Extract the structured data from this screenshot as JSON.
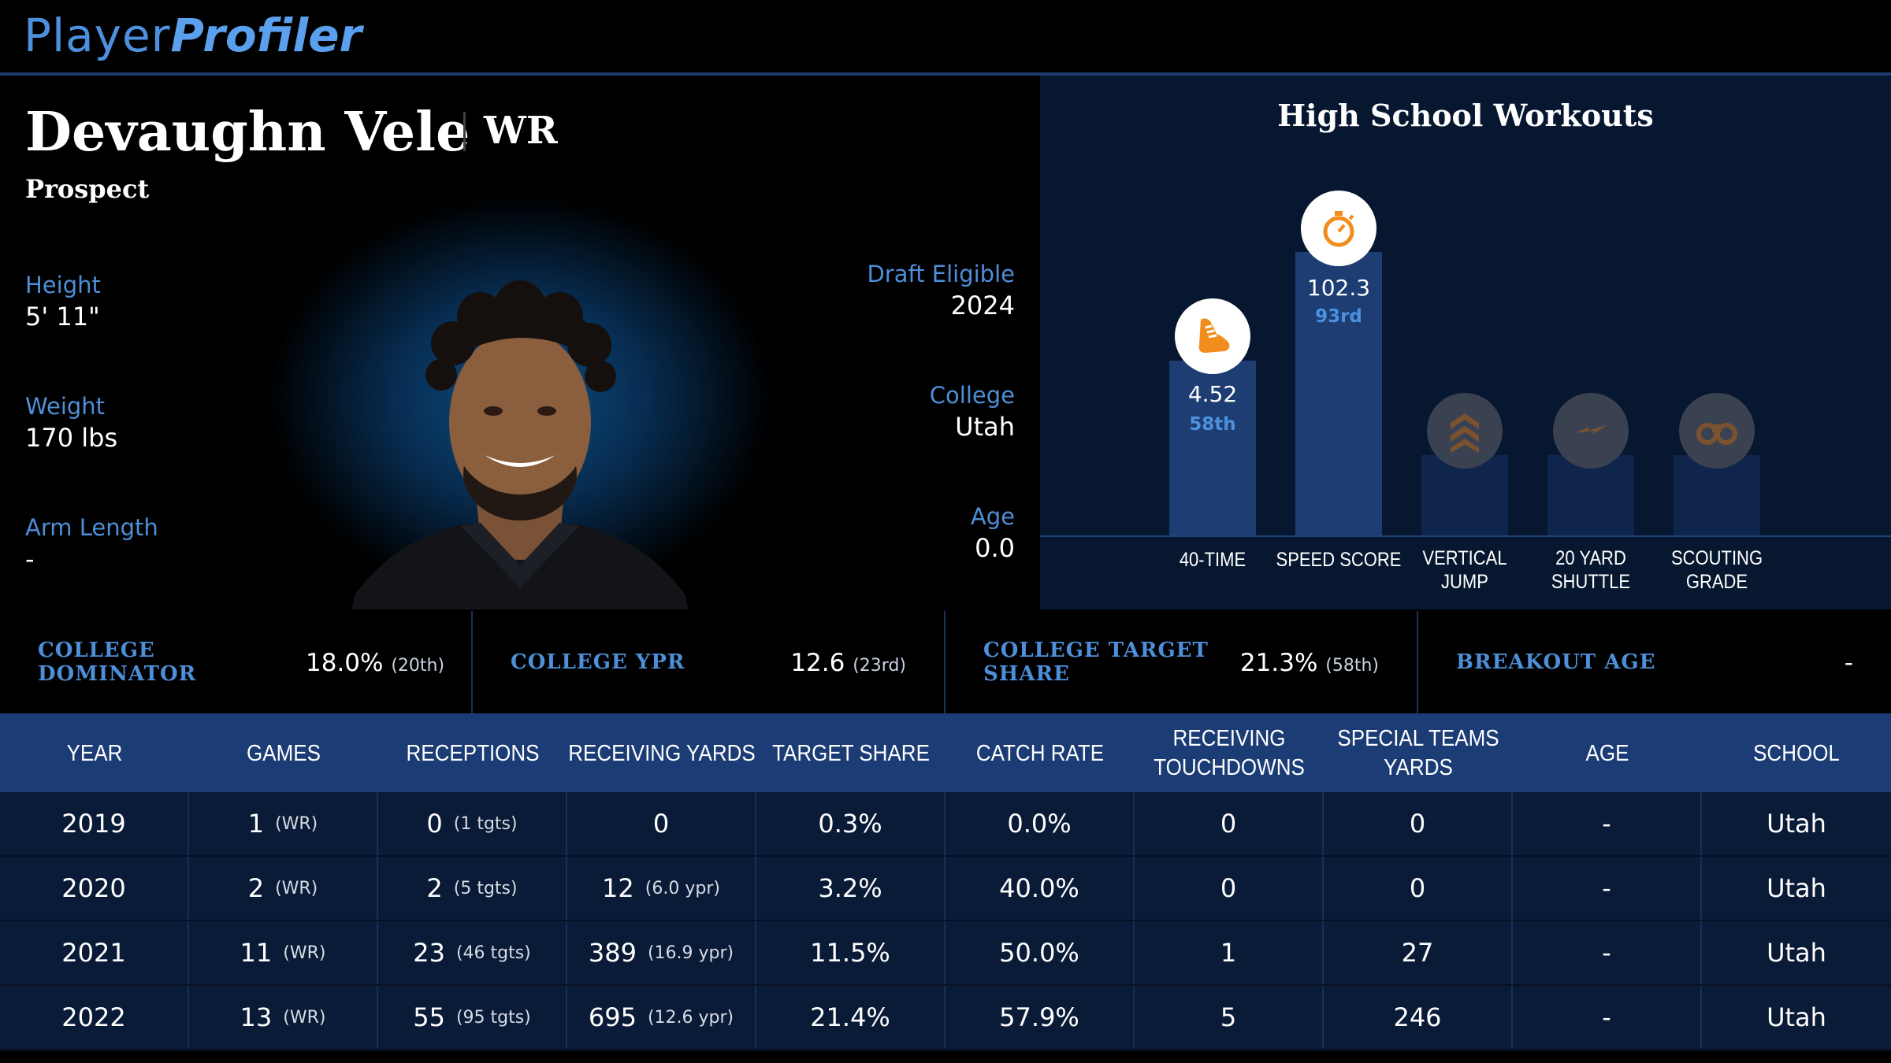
{
  "logo": {
    "part1": "Player",
    "part2": "Profiler"
  },
  "player": {
    "name": "Devaughn Vele",
    "position": "WR",
    "status": "Prospect",
    "left_fields": [
      {
        "label": "Height",
        "value": "5' 11\""
      },
      {
        "label": "Weight",
        "value": "170 lbs"
      },
      {
        "label": "Arm Length",
        "value": "-"
      }
    ],
    "right_fields": [
      {
        "label": "Draft Eligible",
        "value": "2024"
      },
      {
        "label": "College",
        "value": "Utah"
      },
      {
        "label": "Age",
        "value": "0.0"
      }
    ]
  },
  "workouts": {
    "title": "High School Workouts",
    "items": [
      {
        "label": "40-TIME",
        "value": "4.52",
        "percentile": "58th",
        "icon": "shoe-icon",
        "level": 0.5
      },
      {
        "label": "SPEED SCORE",
        "value": "102.3",
        "percentile": "93rd",
        "icon": "stopwatch-icon",
        "level": 0.81
      },
      {
        "label": "VERTICAL JUMP",
        "value": "",
        "percentile": "",
        "icon": "chevrons-up-icon",
        "level": 0
      },
      {
        "label": "20 YARD SHUTTLE",
        "value": "",
        "percentile": "",
        "icon": "lightning-icon",
        "level": 0
      },
      {
        "label": "SCOUTING GRADE",
        "value": "",
        "percentile": "",
        "icon": "binoculars-icon",
        "level": 0
      }
    ]
  },
  "stats": [
    {
      "label": "COLLEGE DOMINATOR",
      "value": "18.0%",
      "rank": "(20th)"
    },
    {
      "label": "COLLEGE YPR",
      "value": "12.6",
      "rank": "(23rd)"
    },
    {
      "label": "COLLEGE TARGET SHARE",
      "value": "21.3%",
      "rank": "(58th)"
    },
    {
      "label": "BREAKOUT AGE",
      "value": "-",
      "rank": ""
    }
  ],
  "table": {
    "headers": [
      "YEAR",
      "GAMES",
      "RECEPTIONS",
      "RECEIVING YARDS",
      "TARGET SHARE",
      "CATCH RATE",
      "RECEIVING TOUCHDOWNS",
      "SPECIAL TEAMS YARDS",
      "AGE",
      "SCHOOL"
    ],
    "rows": [
      {
        "year": "2019",
        "games": "1",
        "games_pos": "(WR)",
        "rec": "0",
        "tgts": "(1 tgts)",
        "yards": "0",
        "ypr": "",
        "target_share": "0.3%",
        "catch_rate": "0.0%",
        "td": "0",
        "st_yards": "0",
        "age": "-",
        "school": "Utah"
      },
      {
        "year": "2020",
        "games": "2",
        "games_pos": "(WR)",
        "rec": "2",
        "tgts": "(5 tgts)",
        "yards": "12",
        "ypr": "(6.0 ypr)",
        "target_share": "3.2%",
        "catch_rate": "40.0%",
        "td": "0",
        "st_yards": "0",
        "age": "-",
        "school": "Utah"
      },
      {
        "year": "2021",
        "games": "11",
        "games_pos": "(WR)",
        "rec": "23",
        "tgts": "(46 tgts)",
        "yards": "389",
        "ypr": "(16.9 ypr)",
        "target_share": "11.5%",
        "catch_rate": "50.0%",
        "td": "1",
        "st_yards": "27",
        "age": "-",
        "school": "Utah"
      },
      {
        "year": "2022",
        "games": "13",
        "games_pos": "(WR)",
        "rec": "55",
        "tgts": "(95 tgts)",
        "yards": "695",
        "ypr": "(12.6 ypr)",
        "target_share": "21.4%",
        "catch_rate": "57.9%",
        "td": "5",
        "st_yards": "246",
        "age": "-",
        "school": "Utah"
      }
    ]
  },
  "colors": {
    "accent": "#4d8fd8",
    "bar": "#1d3d73",
    "bar_dim": "#10254b",
    "header_bg": "#1b3c75",
    "row_bg": "#0a1b37",
    "icon_orange": "#f28c1c"
  }
}
